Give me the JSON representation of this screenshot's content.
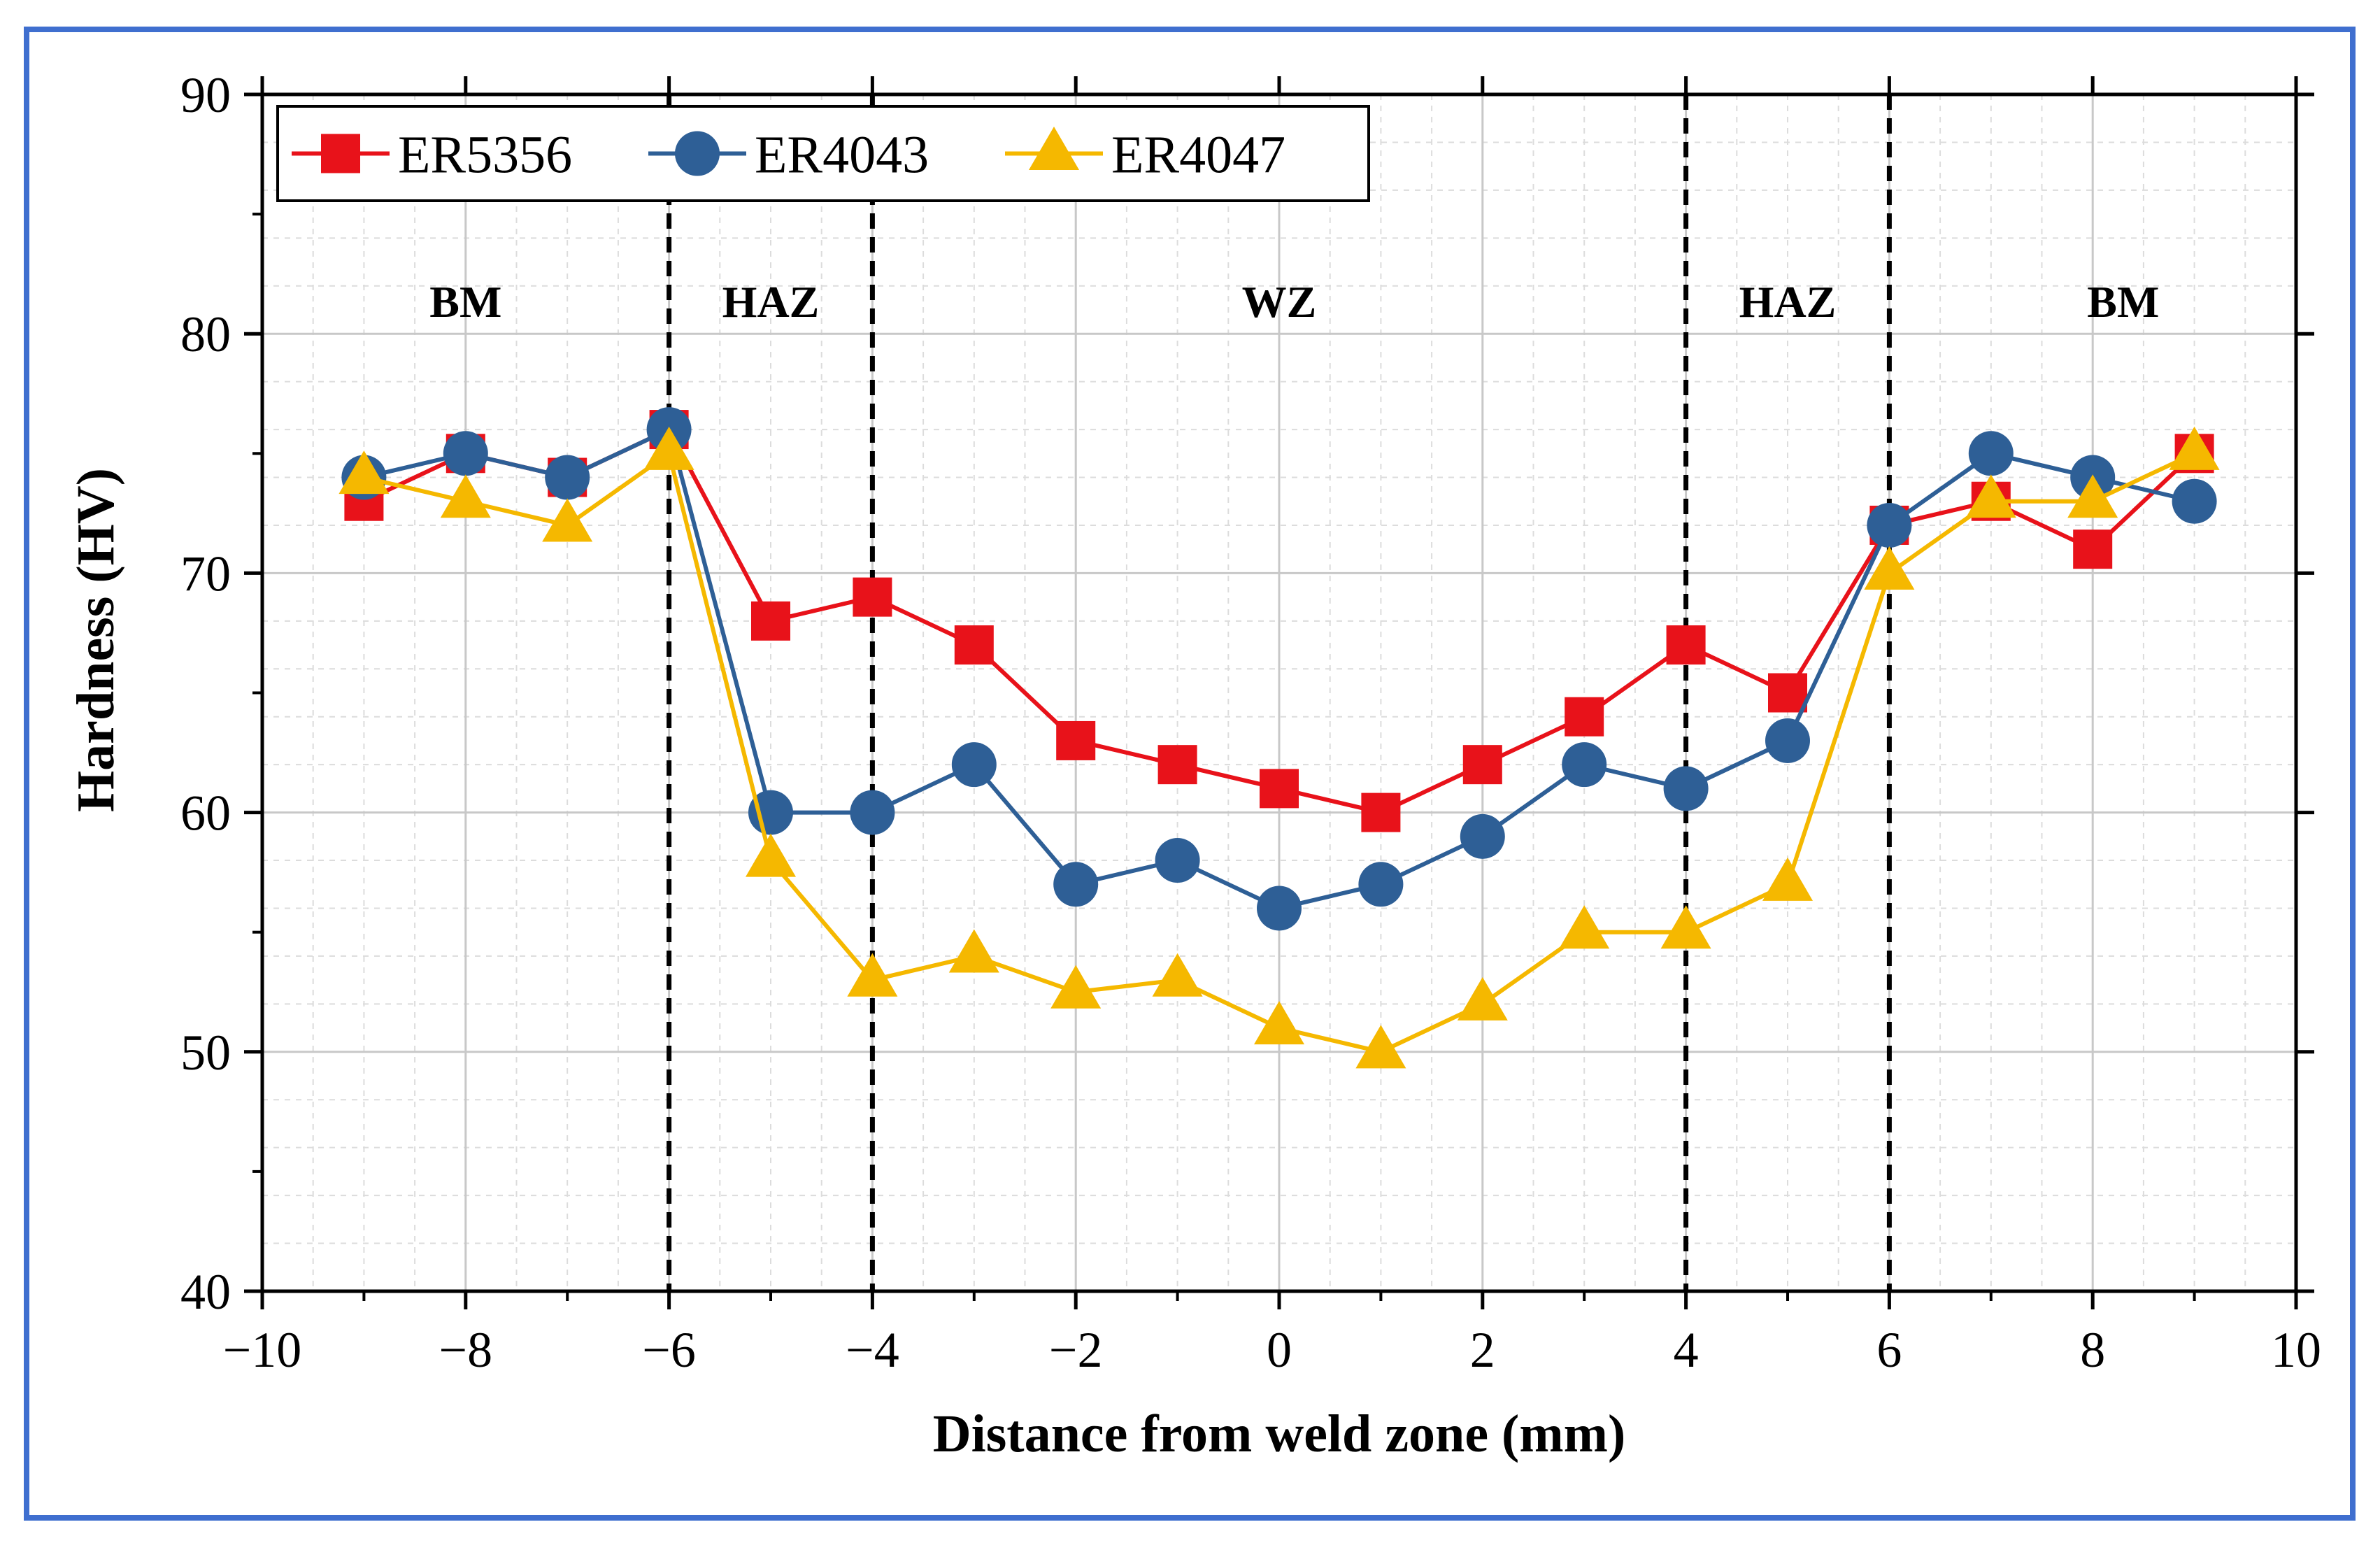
{
  "chart_data": {
    "type": "line",
    "xlabel": "Distance from weld zone (mm)",
    "ylabel": "Hardness (HV)",
    "xlim": [
      -10,
      10
    ],
    "ylim": [
      40,
      90
    ],
    "xticks": [
      -10,
      -8,
      -6,
      -4,
      -2,
      0,
      2,
      4,
      6,
      8,
      10
    ],
    "xtick_labels": [
      "−10",
      "−8",
      "−6",
      "−4",
      "−2",
      "0",
      "2",
      "4",
      "6",
      "8",
      "10"
    ],
    "yticks": [
      40,
      50,
      60,
      70,
      80,
      90
    ],
    "ytick_labels": [
      "40",
      "50",
      "60",
      "70",
      "80",
      "90"
    ],
    "grid": true,
    "legend_position": "top-left",
    "zone_boundaries": [
      -6,
      -4,
      4,
      6
    ],
    "zones": [
      {
        "label": "BM",
        "x": -8
      },
      {
        "label": "HAZ",
        "x": -5
      },
      {
        "label": "WZ",
        "x": 0
      },
      {
        "label": "HAZ",
        "x": 5
      },
      {
        "label": "BM",
        "x": 8.3
      }
    ],
    "x": [
      -9,
      -8,
      -7,
      -6,
      -5,
      -4,
      -3,
      -2,
      -1,
      0,
      1,
      2,
      3,
      4,
      5,
      6,
      7,
      8,
      9
    ],
    "series": [
      {
        "name": "ER5356",
        "color": "#e8121a",
        "marker": "square",
        "values": [
          73,
          75,
          74,
          76,
          68,
          69,
          67,
          63,
          62,
          61,
          60,
          62,
          64,
          67,
          65,
          72,
          73,
          71,
          75
        ]
      },
      {
        "name": "ER4043",
        "color": "#2e5f96",
        "marker": "circle",
        "values": [
          74,
          75,
          74,
          76,
          60,
          60,
          62,
          57,
          58,
          56,
          57,
          59,
          62,
          61,
          63,
          72,
          75,
          74,
          73
        ]
      },
      {
        "name": "ER4047",
        "color": "#f5b800",
        "marker": "triangle",
        "values": [
          74,
          73,
          72,
          75,
          58,
          53,
          54,
          52.5,
          53,
          51,
          50,
          52,
          55,
          55,
          57,
          70,
          73,
          73,
          75
        ]
      }
    ]
  },
  "colors": {
    "frame_border": "#3f6fcf",
    "axis": "#000000",
    "grid_major": "#c8c8c8",
    "grid_minor": "#dcdcdc",
    "boundary": "#000000"
  }
}
